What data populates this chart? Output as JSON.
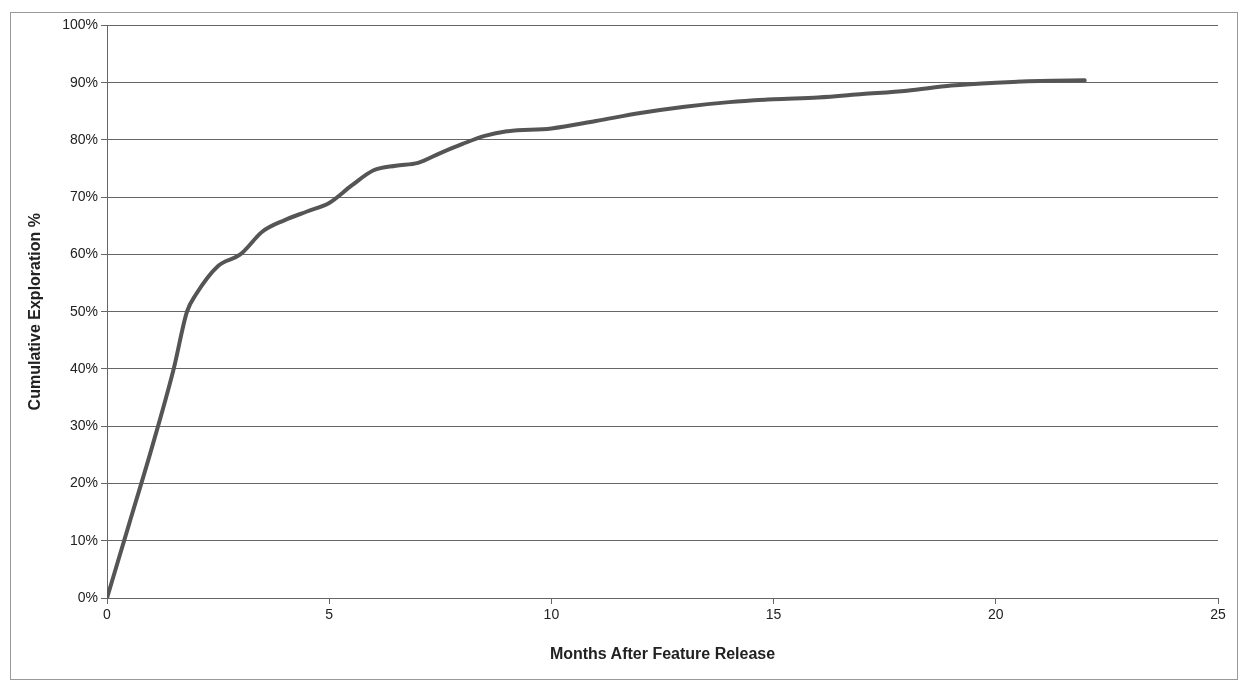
{
  "chart_data": {
    "type": "line",
    "xlabel": "Months After Feature Release",
    "ylabel": "Cumulative Exploration %",
    "x": [
      0,
      0.5,
      1,
      1.5,
      1.8,
      2,
      2.5,
      3,
      3.5,
      4,
      4.5,
      5,
      5.5,
      6,
      6.5,
      7,
      7.5,
      8,
      8.5,
      9,
      10,
      11,
      12,
      13,
      14,
      15,
      16,
      17,
      18,
      19,
      20,
      21,
      22
    ],
    "series": [
      {
        "color": "#555555",
        "values": [
          0,
          13,
          26,
          40,
          50,
          53,
          58,
          60,
          64,
          66,
          67.5,
          69,
          72,
          74.7,
          75.5,
          76,
          77.7,
          79.3,
          80.7,
          81.5,
          82,
          83.3,
          84.7,
          85.8,
          86.6,
          87.1,
          87.4,
          88,
          88.6,
          89.5,
          90,
          90.3,
          90.4
        ]
      }
    ],
    "xlim": [
      0,
      25
    ],
    "xticks": [
      0,
      5,
      10,
      15,
      20,
      25
    ],
    "ylim": [
      0,
      100
    ],
    "yticks": [
      {
        "value": 0,
        "label": "0%"
      },
      {
        "value": 10,
        "label": "10%"
      },
      {
        "value": 20,
        "label": "20%"
      },
      {
        "value": 30,
        "label": "30%"
      },
      {
        "value": 40,
        "label": "40%"
      },
      {
        "value": 50,
        "label": "50%"
      },
      {
        "value": 60,
        "label": "60%"
      },
      {
        "value": 70,
        "label": "70%"
      },
      {
        "value": 80,
        "label": "80%"
      },
      {
        "value": 90,
        "label": "90%"
      },
      {
        "value": 100,
        "label": "100%"
      }
    ],
    "grid": "y",
    "legend": false,
    "marker": "none",
    "line_style": "solid"
  }
}
